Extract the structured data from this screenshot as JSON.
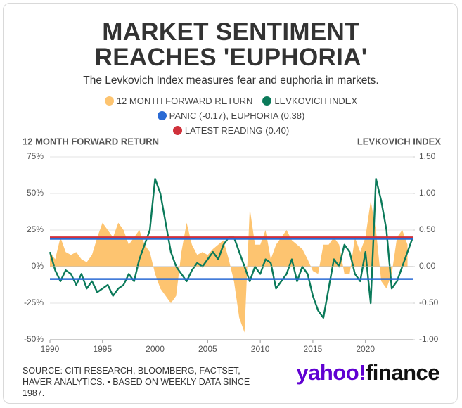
{
  "chart_data": {
    "type": "area_line",
    "title": "MARKET SENTIMENT REACHES 'EUPHORIA'",
    "subtitle": "The Levkovich Index measures fear and euphoria in markets.",
    "y_label": "12 MONTH FORWARD RETURN",
    "y2_label": "LEVKOVICH INDEX",
    "source": "SOURCE: CITI RESEARCH, BLOOMBERG, FACTSET, HAVER ANALYTICS. • BASED ON WEEKLY DATA SINCE 1987.",
    "logo": {
      "brand": "yahoo!",
      "product": "finance"
    },
    "grid": true,
    "x": [
      1990,
      1990.5,
      1991,
      1991.5,
      1992,
      1992.5,
      1993,
      1993.5,
      1994,
      1994.5,
      1995,
      1995.5,
      1996,
      1996.5,
      1997,
      1997.5,
      1998,
      1998.5,
      1999,
      1999.5,
      2000,
      2000.5,
      2001,
      2001.5,
      2002,
      2002.5,
      2003,
      2003.5,
      2004,
      2004.5,
      2005,
      2005.5,
      2006,
      2006.5,
      2007,
      2007.5,
      2008,
      2008.5,
      2009,
      2009.5,
      2010,
      2010.5,
      2011,
      2011.5,
      2012,
      2012.5,
      2013,
      2013.5,
      2014,
      2014.5,
      2015,
      2015.5,
      2016,
      2016.5,
      2017,
      2017.5,
      2018,
      2018.5,
      2019,
      2019.5,
      2020,
      2020.5,
      2021,
      2021.5,
      2022,
      2022.5,
      2023,
      2023.5,
      2024,
      2024.5
    ],
    "xlim": [
      1990,
      2024.5
    ],
    "xticks": [
      1990,
      1995,
      2000,
      2005,
      2010,
      2015,
      2020
    ],
    "ylim": [
      -50,
      75
    ],
    "yticks": [
      {
        "value": -50,
        "label": "-50%"
      },
      {
        "value": -25,
        "label": "-25%"
      },
      {
        "value": 0,
        "label": "0%"
      },
      {
        "value": 25,
        "label": "25%"
      },
      {
        "value": 50,
        "label": "50%"
      },
      {
        "value": 75,
        "label": "75%"
      }
    ],
    "y2lim": [
      -1,
      1.5
    ],
    "y2ticks": [
      {
        "value": -1,
        "label": "-1.00"
      },
      {
        "value": -0.5,
        "label": "-0.50"
      },
      {
        "value": 0,
        "label": "0.00"
      },
      {
        "value": 0.5,
        "label": "0.50"
      },
      {
        "value": 1,
        "label": "1.00"
      },
      {
        "value": 1.5,
        "label": "1.50"
      }
    ],
    "series": [
      {
        "name": "12 MONTH FORWARD RETURN",
        "color": "#fdc470",
        "kind": "area",
        "values": [
          10,
          5,
          20,
          10,
          8,
          10,
          5,
          3,
          8,
          20,
          30,
          25,
          20,
          30,
          25,
          15,
          20,
          25,
          15,
          10,
          -5,
          -15,
          -20,
          -25,
          -20,
          10,
          30,
          15,
          8,
          10,
          8,
          12,
          15,
          18,
          5,
          -10,
          -35,
          -45,
          40,
          15,
          15,
          25,
          5,
          15,
          20,
          25,
          18,
          15,
          12,
          5,
          -3,
          -5,
          15,
          15,
          20,
          15,
          -5,
          -5,
          20,
          10,
          20,
          45,
          25,
          -10,
          -15,
          -5,
          20,
          25,
          15,
          null
        ]
      },
      {
        "name": "LEVKOVICH INDEX",
        "color": "#0b7a5a",
        "kind": "line",
        "axis": "y2",
        "values": [
          0.2,
          -0.05,
          -0.2,
          -0.05,
          -0.1,
          -0.25,
          -0.1,
          -0.3,
          -0.2,
          -0.35,
          -0.3,
          -0.25,
          -0.4,
          -0.3,
          -0.25,
          -0.1,
          -0.2,
          0.1,
          0.3,
          0.5,
          1.2,
          1.0,
          0.6,
          0.2,
          0.0,
          -0.1,
          -0.2,
          -0.05,
          0.05,
          0.0,
          0.1,
          0.2,
          0.1,
          0.3,
          0.4,
          0.4,
          0.2,
          0.0,
          -0.2,
          0.0,
          -0.1,
          0.1,
          0.05,
          -0.3,
          -0.2,
          -0.1,
          0.1,
          -0.2,
          0.0,
          -0.1,
          -0.4,
          -0.6,
          -0.7,
          -0.3,
          0.1,
          0.0,
          0.3,
          0.2,
          -0.1,
          -0.2,
          0.2,
          -0.5,
          1.2,
          0.9,
          0.5,
          -0.3,
          -0.2,
          0.0,
          0.2,
          0.4
        ]
      }
    ],
    "reference_lines": [
      {
        "name": "PANIC (-0.17), EUPHORIA (0.38)",
        "color": "#2a6ad4",
        "axis": "y2",
        "values": [
          -0.17,
          0.38
        ]
      },
      {
        "name": "LATEST READING (0.40)",
        "color": "#d0313b",
        "axis": "y2",
        "values": [
          0.4
        ]
      }
    ]
  }
}
